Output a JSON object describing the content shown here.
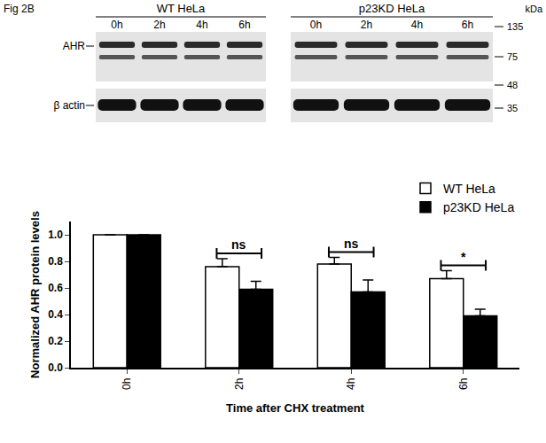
{
  "chart_data": {
    "type": "bar",
    "categories": [
      "0h",
      "2h",
      "4h",
      "6h"
    ],
    "x_label": "Time after CHX treatment",
    "y_label": "Normalized AHR protein levels",
    "series": [
      {
        "name": "WT HeLa",
        "color": "#ffffff",
        "values": [
          1.0,
          0.76,
          0.78,
          0.67
        ],
        "errors": [
          0,
          0.06,
          0.05,
          0.06
        ]
      },
      {
        "name": "p23KD HeLa",
        "color": "#000000",
        "values": [
          1.0,
          0.59,
          0.57,
          0.39
        ],
        "errors": [
          0,
          0.06,
          0.09,
          0.05
        ]
      }
    ],
    "significance": [
      {
        "category": "2h",
        "label": "ns"
      },
      {
        "category": "4h",
        "label": "ns"
      },
      {
        "category": "6h",
        "label": "*"
      }
    ],
    "ylim": [
      0,
      1.1
    ],
    "yticks": [
      {
        "value": 0,
        "label": "0.0"
      },
      {
        "value": 0.2,
        "label": "0.2"
      },
      {
        "value": 0.4,
        "label": "0.4"
      },
      {
        "value": 0.6,
        "label": "0.6"
      },
      {
        "value": 0.8,
        "label": "0.8"
      },
      {
        "value": 1.0,
        "label": "1.0"
      }
    ],
    "grid": false,
    "legend": "top right"
  },
  "blot": {
    "figure_label": "Fig 2B",
    "panels": [
      {
        "title": "WT HeLa",
        "lanes": [
          "0h",
          "2h",
          "4h",
          "6h"
        ]
      },
      {
        "title": "p23KD HeLa",
        "lanes": [
          "0h",
          "2h",
          "4h",
          "6h"
        ]
      }
    ],
    "rows": [
      "AHR",
      "β actin"
    ],
    "mw_unit": "kDa",
    "mw_markers": [
      135,
      75,
      48,
      35
    ]
  }
}
